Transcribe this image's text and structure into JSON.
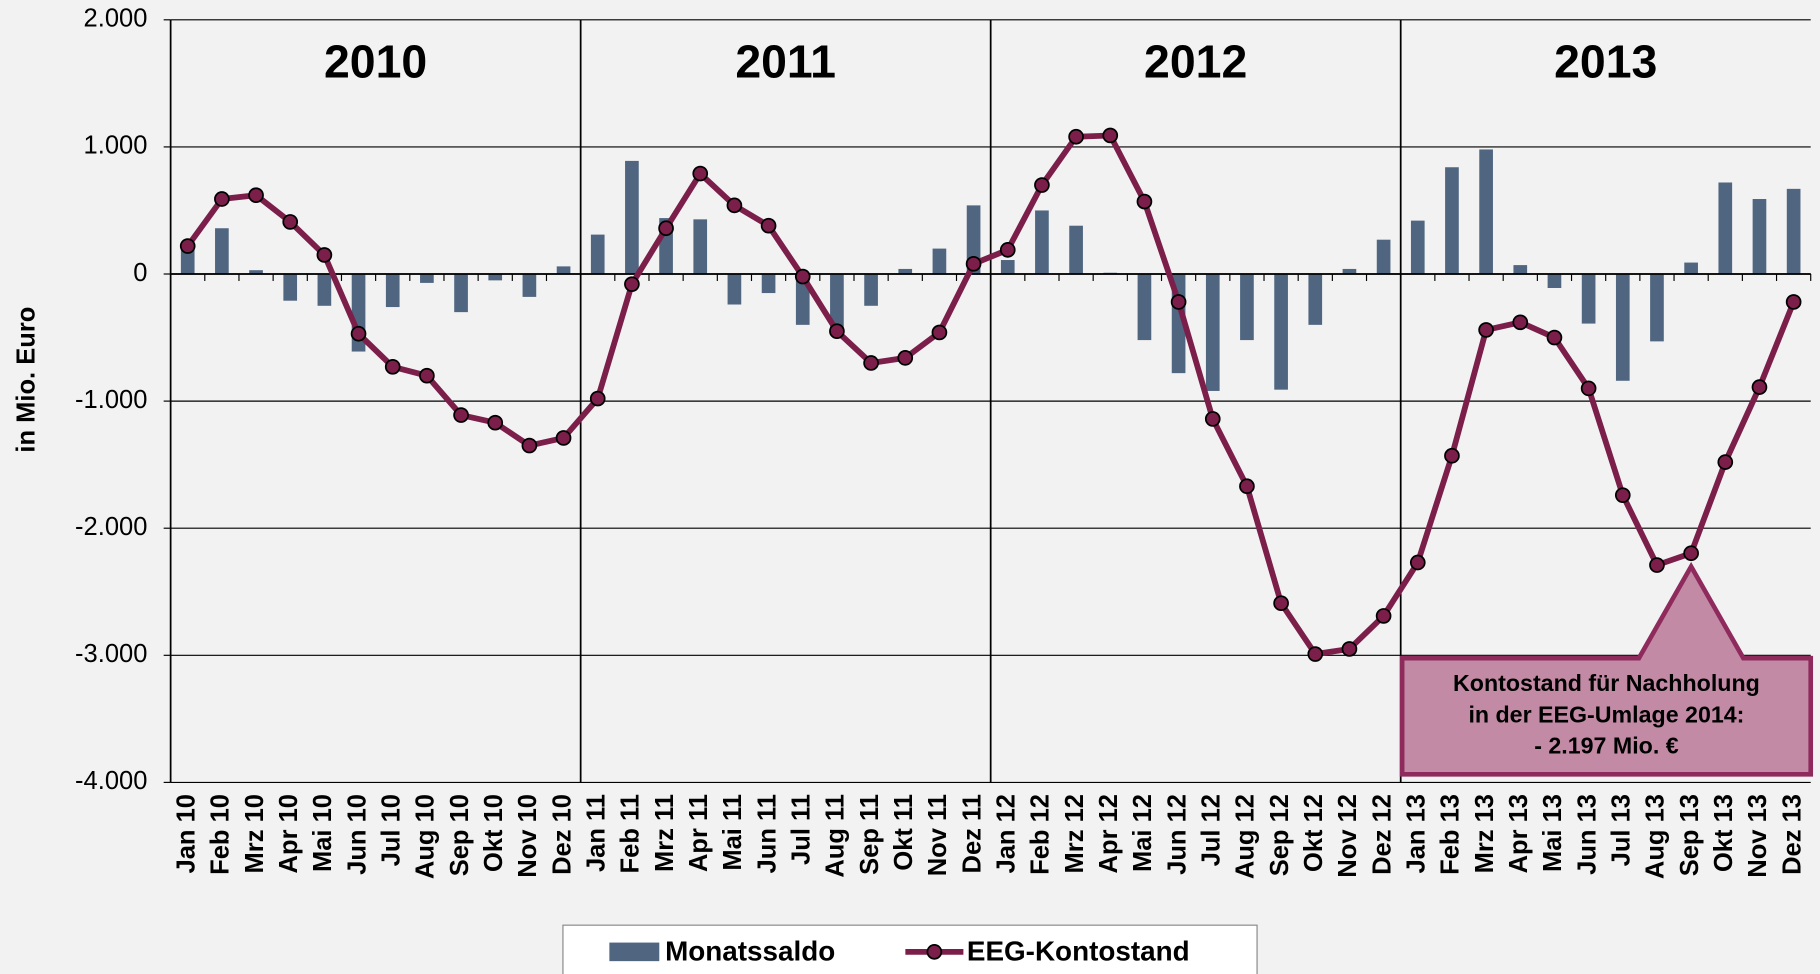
{
  "chart_data": {
    "type": "bar_line",
    "y_label": "in Mio. Euro",
    "year_labels": [
      "2010",
      "2011",
      "2012",
      "2013"
    ],
    "categories": [
      "Jan 10",
      "Feb 10",
      "Mrz 10",
      "Apr 10",
      "Mai 10",
      "Jun 10",
      "Jul 10",
      "Aug 10",
      "Sep 10",
      "Okt 10",
      "Nov 10",
      "Dez 10",
      "Jan 11",
      "Feb 11",
      "Mrz 11",
      "Apr 11",
      "Mai 11",
      "Jun 11",
      "Jul 11",
      "Aug 11",
      "Sep 11",
      "Okt 11",
      "Nov 11",
      "Dez 11",
      "Jan 12",
      "Feb 12",
      "Mrz 12",
      "Apr 12",
      "Mai 12",
      "Jun 12",
      "Jul 12",
      "Aug 12",
      "Sep 12",
      "Okt 12",
      "Nov 12",
      "Dez 12",
      "Jan 13",
      "Feb 13",
      "Mrz 13",
      "Apr 13",
      "Mai 13",
      "Jun 13",
      "Jul 13",
      "Aug 13",
      "Sep 13",
      "Okt 13",
      "Nov 13",
      "Dez 13"
    ],
    "series": [
      {
        "name": "Monatssaldo",
        "type": "bar",
        "color": "#4f6580",
        "values": [
          200,
          360,
          30,
          -210,
          -250,
          -610,
          -260,
          -70,
          -300,
          -50,
          -180,
          60,
          310,
          890,
          440,
          430,
          -240,
          -150,
          -400,
          -450,
          -250,
          40,
          200,
          540,
          110,
          500,
          380,
          10,
          -520,
          -780,
          -920,
          -520,
          -910,
          -400,
          40,
          270,
          420,
          840,
          980,
          70,
          -110,
          -390,
          -840,
          -530,
          90,
          720,
          590,
          670
        ]
      },
      {
        "name": "EEG-Kontostand",
        "type": "line",
        "color": "#7b1f4a",
        "values": [
          220,
          590,
          620,
          410,
          150,
          -470,
          -730,
          -800,
          -1110,
          -1170,
          -1350,
          -1290,
          -980,
          -80,
          360,
          790,
          540,
          380,
          -20,
          -450,
          -700,
          -660,
          -460,
          80,
          190,
          700,
          1080,
          1090,
          570,
          -220,
          -1140,
          -1670,
          -2590,
          -2990,
          -2950,
          -2690,
          -2270,
          -1430,
          -440,
          -380,
          -500,
          -900,
          -1740,
          -2290,
          -2197,
          -1480,
          -890,
          -220
        ]
      }
    ],
    "ylim": [
      -4000,
      2000
    ],
    "yticks": [
      {
        "value": -4000,
        "label": "-4.000"
      },
      {
        "value": -3000,
        "label": "-3.000"
      },
      {
        "value": -2000,
        "label": "-2.000"
      },
      {
        "value": -1000,
        "label": "-1.000"
      },
      0,
      {
        "value": 1000,
        "label": "1.000"
      },
      {
        "value": 2000,
        "label": "2.000"
      }
    ],
    "grid": true,
    "annotation": [
      "Kontostand für Nachholung",
      "in der EEG-Umlage 2014:",
      "- 2.197 Mio. €"
    ]
  }
}
